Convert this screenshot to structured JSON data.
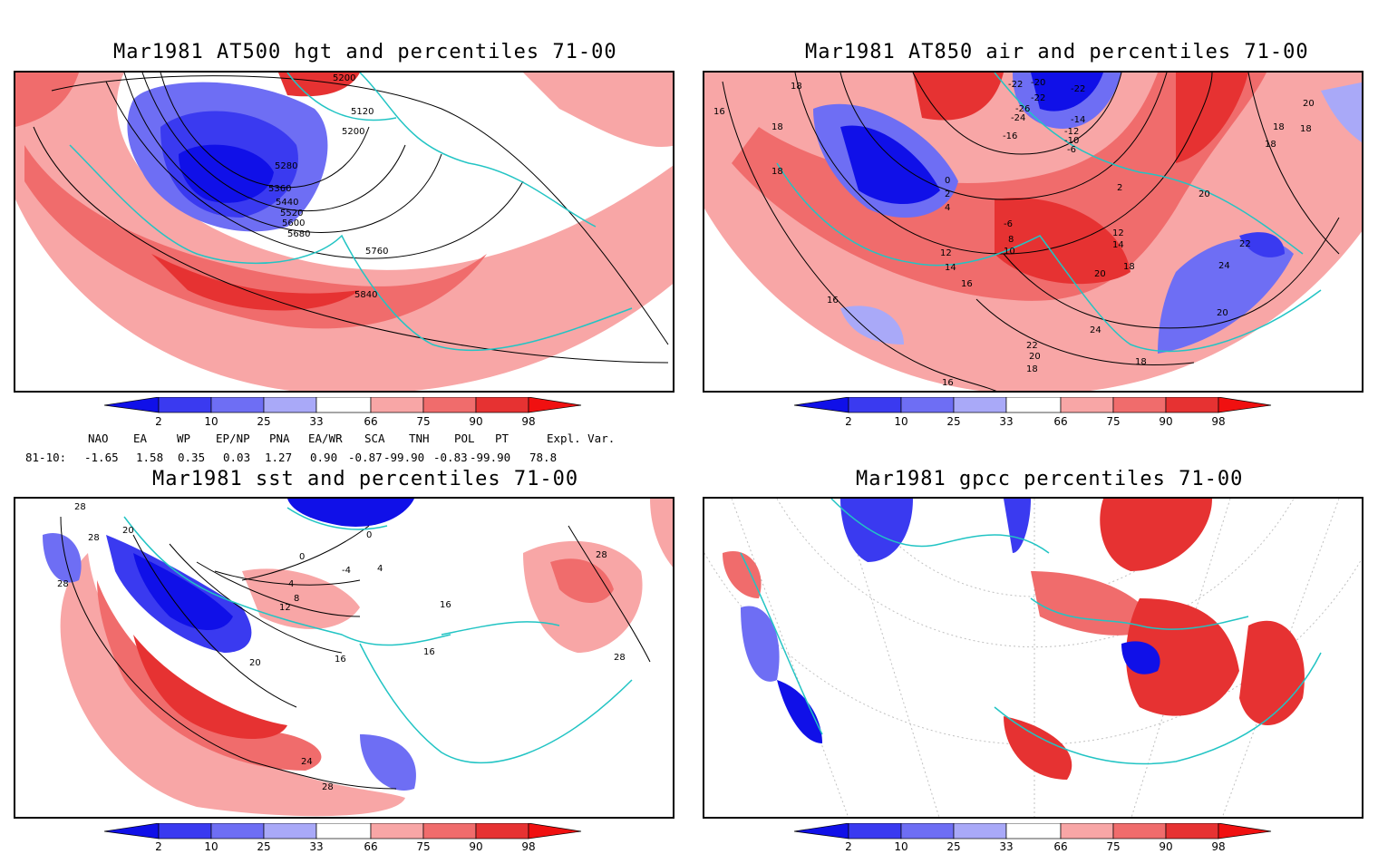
{
  "panels": {
    "hgt": {
      "title": "Mar1981 AT500 hgt and percentiles 71-00",
      "contour_labels": [
        "5200",
        "5120",
        "5200",
        "5280",
        "5360",
        "5440",
        "5520",
        "5600",
        "5680",
        "5760",
        "5840"
      ]
    },
    "air": {
      "title": "Mar1981 AT850 air and percentiles 71-00",
      "contour_labels": [
        "18",
        "16",
        "18",
        "18",
        "-22",
        "-20",
        "-22",
        "-22",
        "-26",
        "-24",
        "-16",
        "-14",
        "-12",
        "-10",
        "-6",
        "0",
        "2",
        "4",
        "2",
        "-6",
        "8",
        "10",
        "12",
        "14",
        "16",
        "12",
        "14",
        "18",
        "20",
        "20",
        "22",
        "24",
        "20",
        "22",
        "20",
        "18",
        "24",
        "18",
        "16",
        "16",
        "18",
        "18",
        "20",
        "18"
      ]
    },
    "sst": {
      "title": "Mar1981 sst and percentiles 71-00",
      "contour_labels": [
        "28",
        "28",
        "20",
        "28",
        "0",
        "0",
        "4",
        "-4",
        "4",
        "8",
        "12",
        "16",
        "20",
        "16",
        "16",
        "24",
        "28",
        "28",
        "28"
      ]
    },
    "gpcc": {
      "title": "Mar1981 gpcc percentiles 71-00"
    }
  },
  "colorbar": {
    "tick_labels": [
      "2",
      "10",
      "25",
      "33",
      "66",
      "75",
      "90",
      "98"
    ],
    "colors": {
      "lt2": "#1010e8",
      "b2_10": "#3a3af0",
      "b10_25": "#6e6ef4",
      "b25_33": "#a9a9f8",
      "b33_66": "#ffffff",
      "b66_75": "#f8a6a6",
      "b75_90": "#f06c6c",
      "b90_98": "#e63232",
      "gt98": "#f01010"
    }
  },
  "indices": {
    "headers": [
      "NAO",
      "EA",
      "WP",
      "EP/NP",
      "PNA",
      "EA/WR",
      "SCA",
      "TNH",
      "POL",
      "PT",
      "Expl. Var."
    ],
    "row_label": "81-10:",
    "values": [
      "-1.65",
      "1.58",
      "0.35",
      "0.03",
      "1.27",
      "0.90",
      "-0.87",
      "-99.90",
      "-0.83",
      "-99.90",
      "78.8"
    ]
  },
  "coastline_color": "#22c4c4"
}
